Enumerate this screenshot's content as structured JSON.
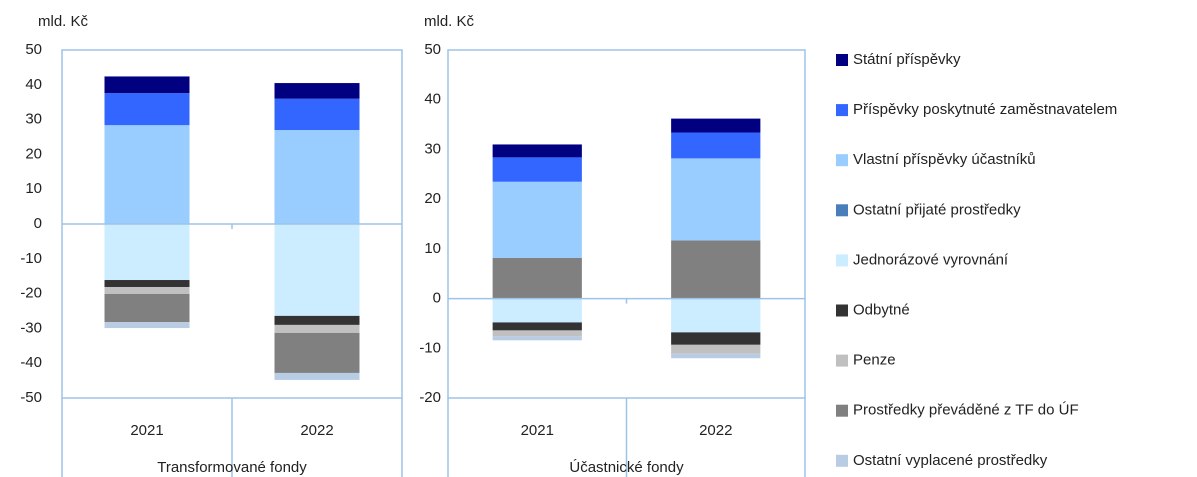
{
  "chart_data": [
    {
      "type": "bar",
      "stacked": true,
      "ylabel": "mld. Kč",
      "xlabel": "Transformované fondy",
      "categories": [
        "2021",
        "2022"
      ],
      "ylim": [
        -50,
        50
      ],
      "yticks": [
        -50,
        -40,
        -30,
        -20,
        -10,
        0,
        10,
        20,
        30,
        40,
        50
      ],
      "series": [
        {
          "name": "Státní příspěvky",
          "color": "#000080",
          "values": [
            4.8,
            4.5
          ]
        },
        {
          "name": "Příspěvky poskytnuté zaměstnavatelem",
          "color": "#3366ff",
          "values": [
            9.2,
            9.0
          ]
        },
        {
          "name": "Vlastní příspěvky účastníků",
          "color": "#99ccff",
          "values": [
            28.4,
            27.0
          ]
        },
        {
          "name": "Ostatní přijaté prostředky",
          "color": "#4a7ebb",
          "values": [
            0,
            0
          ]
        },
        {
          "name": "Jednorázové vyrovnání",
          "color": "#ccecff",
          "values": [
            -16.1,
            -26.4
          ]
        },
        {
          "name": "Odbytné",
          "color": "#333333",
          "values": [
            -2.0,
            -2.6
          ]
        },
        {
          "name": "Penze",
          "color": "#c0c0c0",
          "values": [
            -2.0,
            -2.3
          ]
        },
        {
          "name": "Prostředky převáděné z TF do ÚF",
          "color": "#808080",
          "values": [
            -8.1,
            -11.5
          ]
        },
        {
          "name": "Ostatní vyplacené prostředky",
          "color": "#b8cce4",
          "values": [
            -1.7,
            -2.0
          ]
        }
      ]
    },
    {
      "type": "bar",
      "stacked": true,
      "ylabel": "mld. Kč",
      "xlabel": "Účastnické fondy",
      "categories": [
        "2021",
        "2022"
      ],
      "ylim": [
        -20,
        50
      ],
      "yticks": [
        -20,
        -10,
        0,
        10,
        20,
        30,
        40,
        50
      ],
      "series": [
        {
          "values": [
            2.6,
            2.8
          ]
        },
        {
          "values": [
            4.9,
            5.2
          ]
        },
        {
          "values": [
            15.3,
            16.5
          ]
        },
        {
          "values": [
            0,
            0
          ]
        },
        {
          "values": [
            -4.8,
            -6.8
          ]
        },
        {
          "values": [
            -1.6,
            -2.5
          ]
        },
        {
          "values": [
            -1.2,
            -1.8
          ]
        },
        {
          "values": [
            8.2,
            11.7
          ]
        },
        {
          "values": [
            -0.8,
            -0.9
          ]
        }
      ]
    }
  ]
}
